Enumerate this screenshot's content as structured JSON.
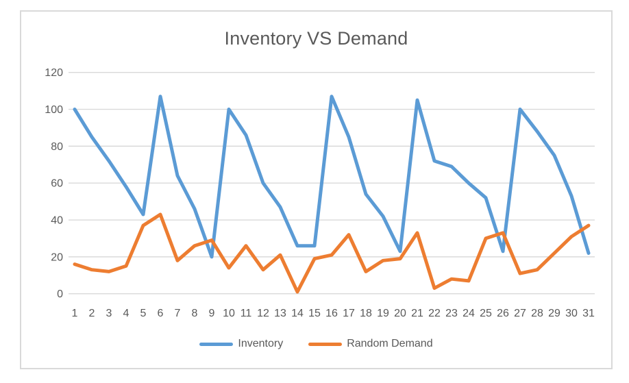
{
  "chart_data": {
    "type": "line",
    "title": "Inventory VS Demand",
    "categories": [
      1,
      2,
      3,
      4,
      5,
      6,
      7,
      8,
      9,
      10,
      11,
      12,
      13,
      14,
      15,
      16,
      17,
      18,
      19,
      20,
      21,
      22,
      23,
      24,
      25,
      26,
      27,
      28,
      29,
      30,
      31
    ],
    "series": [
      {
        "name": "Inventory",
        "color": "#5B9BD5",
        "values": [
          100,
          85,
          72,
          58,
          43,
          107,
          64,
          46,
          20,
          100,
          86,
          60,
          47,
          26,
          26,
          107,
          85,
          54,
          42,
          23,
          105,
          72,
          69,
          60,
          52,
          23,
          100,
          88,
          75,
          53,
          22
        ]
      },
      {
        "name": "Random Demand",
        "color": "#ED7D31",
        "values": [
          16,
          13,
          12,
          15,
          37,
          43,
          18,
          26,
          29,
          14,
          26,
          13,
          21,
          1,
          19,
          21,
          32,
          12,
          18,
          19,
          33,
          3,
          8,
          7,
          30,
          33,
          11,
          13,
          22,
          31,
          37
        ]
      }
    ],
    "xlabel": "",
    "ylabel": "",
    "ylim": [
      0,
      120
    ],
    "yticks": [
      0,
      20,
      40,
      60,
      80,
      100,
      120
    ],
    "grid": "horizontal",
    "legend_position": "bottom",
    "title_color": "#595959",
    "axis_text_color": "#595959",
    "gridline_color": "#D9D9D9",
    "frame_border_color": "#D9D9D9",
    "background_color": "#FFFFFF"
  }
}
